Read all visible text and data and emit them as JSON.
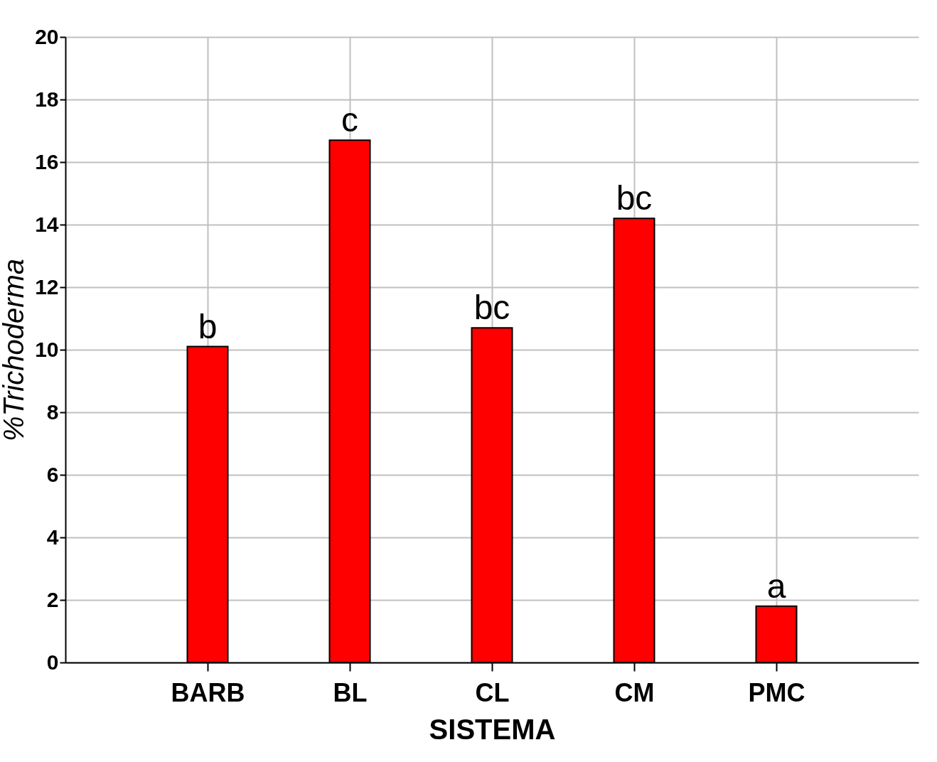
{
  "chart_data": {
    "type": "bar",
    "xlabel": "SISTEMA",
    "ylabel": "%Trichoderma",
    "categories": [
      "BARB",
      "BL",
      "CL",
      "CM",
      "PMC"
    ],
    "values": [
      10.1,
      16.7,
      10.7,
      14.2,
      1.8
    ],
    "value_labels": [
      "b",
      "c",
      "bc",
      "bc",
      "a"
    ],
    "color": "#ff0000",
    "ylim": [
      0,
      20
    ],
    "yticks": [
      0,
      2,
      4,
      6,
      8,
      10,
      12,
      14,
      16,
      18,
      20
    ],
    "grid": true
  }
}
